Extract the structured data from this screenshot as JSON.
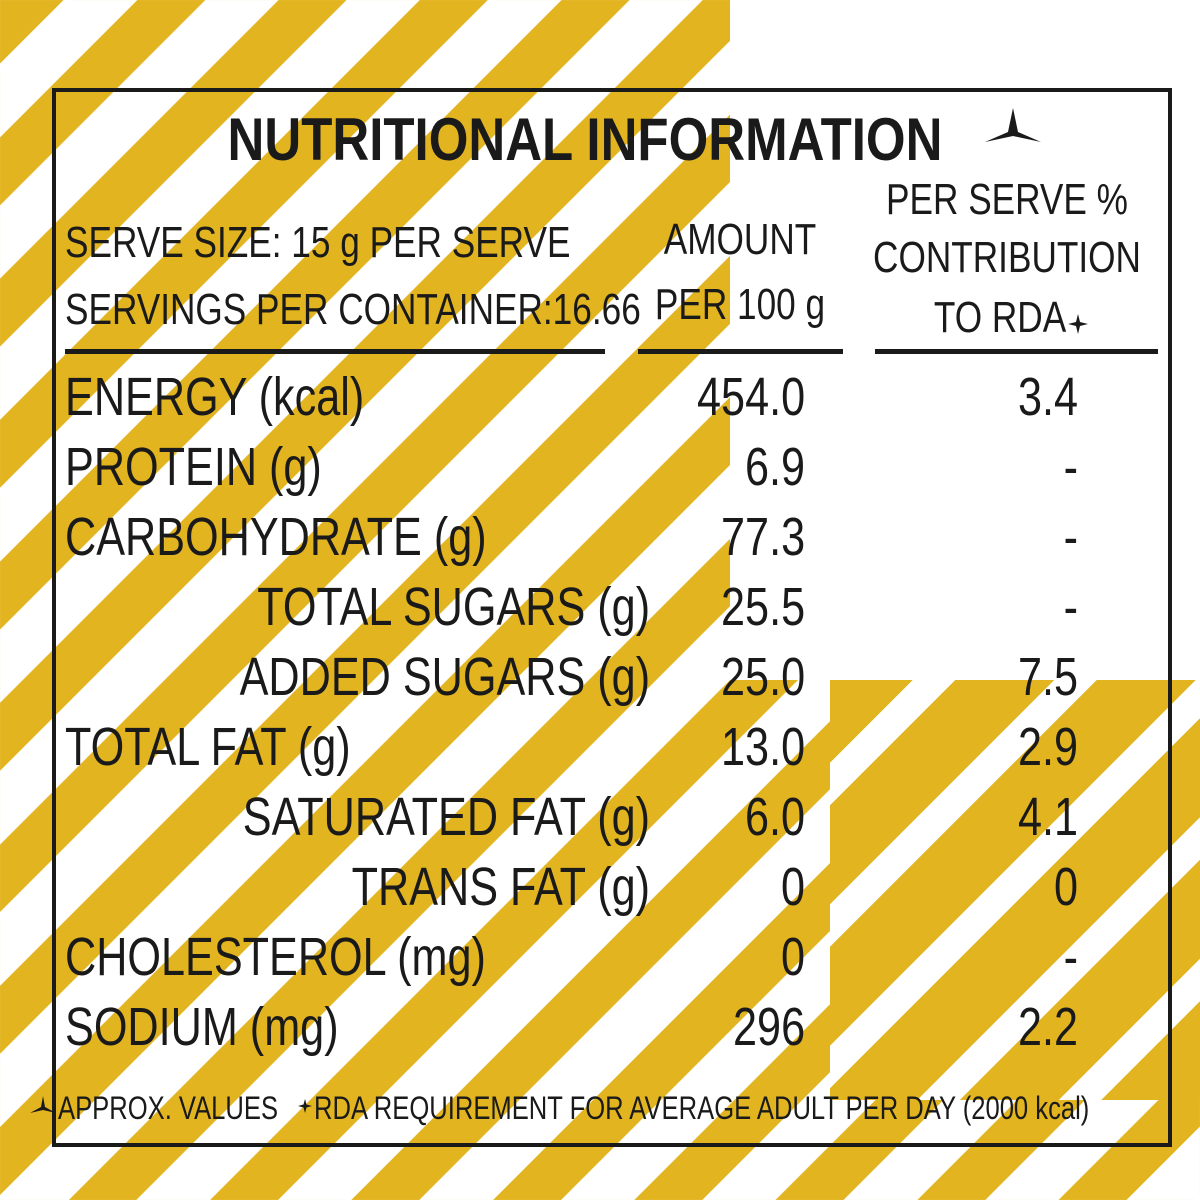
{
  "title": "NUTRITIONAL INFORMATION",
  "serve": [
    "SERVE SIZE: 15 g PER SERVE",
    "SERVINGS PER CONTAINER:16.66"
  ],
  "columns": {
    "amount": [
      "AMOUNT",
      "PER 100 g"
    ],
    "rda": [
      "PER SERVE %",
      "CONTRIBUTION",
      "TO RDA"
    ]
  },
  "rows": [
    [
      "ENERGY (kcal)",
      "454.0",
      "3.4"
    ],
    [
      "PROTEIN (g)",
      "6.9",
      "-"
    ],
    [
      "CARBOHYDRATE (g)",
      "77.3",
      "-"
    ],
    [
      "TOTAL SUGARS (g)",
      "25.5",
      "-"
    ],
    [
      "ADDED SUGARS (g)",
      "25.0",
      "7.5"
    ],
    [
      "TOTAL FAT (g)",
      "13.0",
      "2.9"
    ],
    [
      "SATURATED FAT (g)",
      "6.0",
      "4.1"
    ],
    [
      "TRANS FAT (g)",
      "0",
      "0"
    ],
    [
      "CHOLESTEROL (mg)",
      "0",
      "-"
    ],
    [
      "SODIUM (mg)",
      "296",
      "2.2"
    ]
  ],
  "footer": [
    "APPROX. VALUES",
    "RDA REQUIREMENT FOR AVERAGE ADULT PER DAY (2000 kcal)"
  ]
}
